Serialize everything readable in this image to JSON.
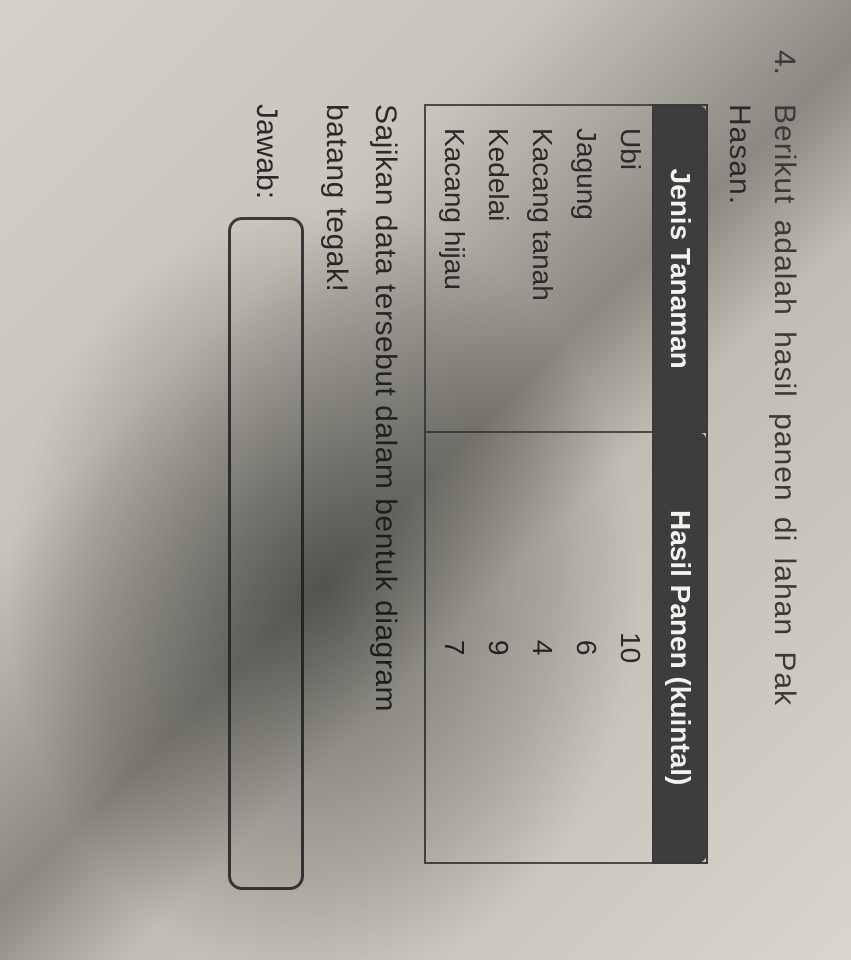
{
  "question": {
    "number": "4.",
    "text_line1": "Berikut adalah hasil panen di lahan Pak",
    "text_line2": "Hasan."
  },
  "table": {
    "type": "table",
    "header_bg": "#3d3d3d",
    "header_color": "#f2f2ee",
    "border_color": "#4a4a4a",
    "columns": [
      "Jenis Tanaman",
      "Hasil Panen (kuintal)"
    ],
    "rows": [
      {
        "name": "Ubi",
        "value": "10"
      },
      {
        "name": "Jagung",
        "value": "6"
      },
      {
        "name": "Kacang tanah",
        "value": "4"
      },
      {
        "name": "Kedelai",
        "value": "9"
      },
      {
        "name": "Kacang hijau",
        "value": "7"
      }
    ]
  },
  "instruction": {
    "line1": "Sajikan data tersebut dalam bentuk diagram",
    "line2": "batang tegak!"
  },
  "answer": {
    "label": "Jawab:"
  },
  "style": {
    "page_text_color": "#2a2a2a",
    "font_family": "Arial"
  }
}
